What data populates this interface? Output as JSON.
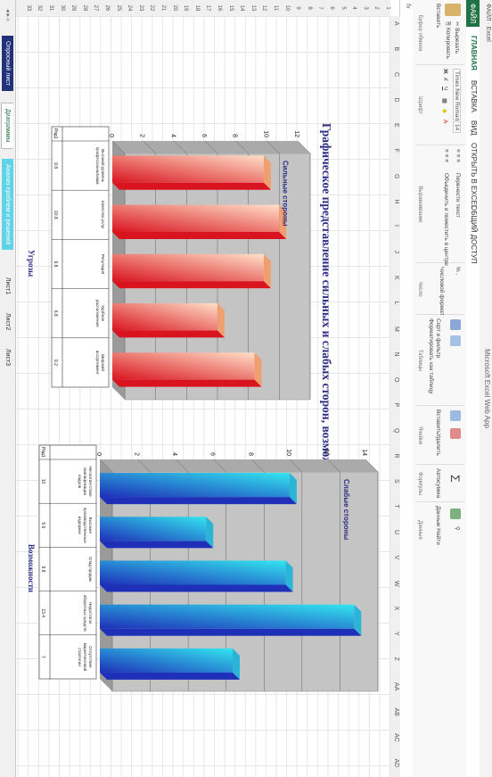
{
  "window": {
    "title": "Microsoft Excel Web App",
    "quick_access": "ФАЙЛ  ·  Excel"
  },
  "tabs": [
    {
      "label": "ФАЙЛ"
    },
    {
      "label": "ГЛАВНАЯ"
    },
    {
      "label": "ВСТАВКА"
    },
    {
      "label": "ВИД"
    },
    {
      "label": "ОТКРЫТЬ В EXCEL"
    },
    {
      "label": "ОБЩИЙ ДОСТУП"
    }
  ],
  "ribbon": {
    "clipboard": {
      "paste": "Вставить",
      "cut": "Вырезать",
      "copy": "Копировать",
      "label": "Буфер обмена"
    },
    "font": {
      "name": "Times New Roman",
      "size": "14",
      "label": "Шрифт"
    },
    "alignment": {
      "wrap": "Перенести текст",
      "merge": "Объединить и поместить в центре",
      "label": "Выравнивание"
    },
    "number": {
      "format": "Числовой формат",
      "label": "Число"
    },
    "tables": {
      "sort": "Сорт и фильтр",
      "format_as_table": "Форматировать как таблицу",
      "label": "Таблицы"
    },
    "cells": {
      "insert": "Вставить",
      "delete": "Удалить",
      "label": "Ячейки"
    },
    "formulas": {
      "autosum": "Автосумма",
      "label": "Формулы"
    },
    "data": {
      "data_label": "Данные",
      "refresh": "Данные Найти",
      "label": "Данные"
    }
  },
  "formula_bar": {
    "fx": "fx"
  },
  "columns": [
    "A",
    "B",
    "C",
    "D",
    "E",
    "F",
    "G",
    "H",
    "I",
    "J",
    "K",
    "L",
    "M",
    "N",
    "O",
    "P",
    "Q",
    "R",
    "S",
    "T",
    "U",
    "V",
    "W",
    "X",
    "Y",
    "Z",
    "AA",
    "AB",
    "AC",
    "AD"
  ],
  "rows": [
    "1",
    "2",
    "3",
    "4",
    "5",
    "6",
    "7",
    "8",
    "9",
    "10",
    "11",
    "12",
    "13",
    "14",
    "15",
    "16",
    "17",
    "18",
    "19",
    "20",
    "21",
    "22",
    "23",
    "24",
    "25",
    "26",
    "27",
    "28",
    "29",
    "30",
    "31",
    "32",
    "33"
  ],
  "heading": "Графическое представление сильных и слабых сторон, возможностей и угроз внешнего окружения",
  "captions": {
    "threats": "Угрозы",
    "opportunities": "Возможности"
  },
  "sheets": [
    {
      "label": "Опросный лист"
    },
    {
      "label": "Диаграммы"
    },
    {
      "label": "Анализ проблем и решений"
    },
    {
      "label": "Лист1"
    },
    {
      "label": "Лист2"
    },
    {
      "label": "Лист3"
    }
  ],
  "chart_data": [
    {
      "type": "bar",
      "title": "Сильные стороны",
      "color": "#e8222a",
      "categories": [
        "Высокий уровень профессионализма",
        "Качество услуг",
        "Репутация",
        "Удобное расположение",
        "Широкий ассортимент"
      ],
      "values": [
        9.8,
        10.8,
        9.8,
        6.8,
        9.2
      ],
      "legend": "Ряд1",
      "ylim": [
        0,
        12
      ],
      "yticks": [
        "0",
        "2",
        "4",
        "6",
        "8",
        "10",
        "12"
      ],
      "grid": true
    },
    {
      "type": "bar",
      "title": "Слабые стороны",
      "color": "#1f3fbf",
      "categories": [
        "Несоответствие квалификации кадров",
        "Высокие производственные издержки",
        "Спад продаж",
        "Недостаток оборотных средств",
        "Отсутствие маркетинговой стратегии"
      ],
      "values": [
        10,
        5.6,
        9.8,
        13.4,
        7.0
      ],
      "table_values": [
        "10",
        "5.6",
        "9.8",
        "13.4",
        "7"
      ],
      "legend": "Ряд1",
      "ylim": [
        0,
        14
      ],
      "yticks": [
        "0",
        "2",
        "4",
        "6",
        "8",
        "10",
        "12",
        "14"
      ],
      "grid": true
    }
  ]
}
